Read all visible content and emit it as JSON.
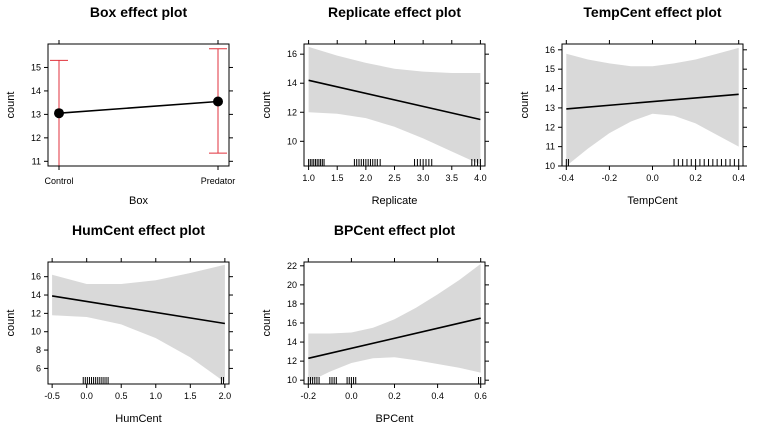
{
  "chart_data": [
    {
      "type": "line",
      "variant": "categorical-points-with-error-bars",
      "title": "Box effect plot",
      "xlabel": "Box",
      "ylabel": "count",
      "categories": [
        "Control",
        "Predator"
      ],
      "values": [
        13.05,
        13.55
      ],
      "lower": [
        10.8,
        11.35
      ],
      "upper": [
        15.3,
        15.8
      ],
      "ylim": [
        10.8,
        16.0
      ],
      "yticks": [
        11,
        12,
        13,
        14,
        15
      ],
      "colors": {
        "line": "#000000",
        "errorbar": "#e0323c",
        "point": "#000000"
      }
    },
    {
      "type": "line",
      "variant": "effect-with-confidence-band",
      "title": "Replicate effect plot",
      "xlabel": "Replicate",
      "ylabel": "count",
      "x": [
        1.0,
        4.0
      ],
      "values": [
        14.2,
        11.5
      ],
      "band_x": [
        1.0,
        1.5,
        2.0,
        2.5,
        3.0,
        3.5,
        4.0
      ],
      "band_lower": [
        12.0,
        11.9,
        11.6,
        11.0,
        10.2,
        9.3,
        8.4
      ],
      "band_upper": [
        16.5,
        15.9,
        15.4,
        15.0,
        14.8,
        14.7,
        14.7
      ],
      "xlim": [
        0.92,
        4.08
      ],
      "ylim": [
        8.3,
        16.7
      ],
      "xticks": [
        "1.0",
        "1.5",
        "2.0",
        "2.5",
        "3.0",
        "3.5",
        "4.0"
      ],
      "yticks": [
        10,
        12,
        14,
        16
      ],
      "rug": [
        1.0,
        1.03,
        1.06,
        1.09,
        1.12,
        1.15,
        1.18,
        1.21,
        1.24,
        1.27,
        1.8,
        1.84,
        1.88,
        1.92,
        1.96,
        2.0,
        2.04,
        2.08,
        2.12,
        2.16,
        2.2,
        2.25,
        2.85,
        2.9,
        2.95,
        3.0,
        3.05,
        3.1,
        3.15,
        3.85,
        3.9,
        3.95,
        4.0
      ],
      "colors": {
        "line": "#000000",
        "band": "#d9d9d9"
      }
    },
    {
      "type": "line",
      "variant": "effect-with-confidence-band",
      "title": "TempCent effect plot",
      "xlabel": "TempCent",
      "ylabel": "count",
      "x": [
        -0.4,
        0.4
      ],
      "values": [
        12.95,
        13.7
      ],
      "band_x": [
        -0.4,
        -0.3,
        -0.2,
        -0.1,
        0.0,
        0.1,
        0.2,
        0.3,
        0.4
      ],
      "band_lower": [
        10.0,
        10.9,
        11.7,
        12.3,
        12.7,
        12.6,
        12.2,
        11.6,
        11.0
      ],
      "band_upper": [
        15.8,
        15.5,
        15.3,
        15.15,
        15.15,
        15.3,
        15.5,
        15.8,
        16.1
      ],
      "xlim": [
        -0.42,
        0.42
      ],
      "ylim": [
        10.0,
        16.3
      ],
      "xticks": [
        "-0.4",
        "-0.2",
        "0.0",
        "0.2",
        "0.4"
      ],
      "yticks": [
        10,
        11,
        12,
        13,
        14,
        15,
        16
      ],
      "rug": [
        -0.4,
        -0.39,
        0.1,
        0.12,
        0.14,
        0.16,
        0.18,
        0.2,
        0.22,
        0.24,
        0.26,
        0.28,
        0.3,
        0.32,
        0.34,
        0.36,
        0.38,
        0.4
      ],
      "colors": {
        "line": "#000000",
        "band": "#d9d9d9"
      }
    },
    {
      "type": "line",
      "variant": "effect-with-confidence-band",
      "title": "HumCent effect plot",
      "xlabel": "HumCent",
      "ylabel": "count",
      "x": [
        -0.5,
        2.0
      ],
      "values": [
        13.9,
        10.9
      ],
      "band_x": [
        -0.5,
        0.0,
        0.5,
        1.0,
        1.5,
        2.0
      ],
      "band_lower": [
        11.8,
        11.6,
        10.8,
        9.3,
        7.2,
        4.5
      ],
      "band_upper": [
        16.2,
        15.2,
        15.2,
        15.6,
        16.4,
        17.3
      ],
      "xlim": [
        -0.56,
        2.06
      ],
      "ylim": [
        4.3,
        17.6
      ],
      "xticks": [
        "-0.5",
        "0.0",
        "0.5",
        "1.0",
        "1.5",
        "2.0"
      ],
      "yticks": [
        6,
        8,
        10,
        12,
        14,
        16
      ],
      "rug": [
        -0.05,
        -0.02,
        0.01,
        0.04,
        0.07,
        0.1,
        0.13,
        0.16,
        0.19,
        0.22,
        0.25,
        0.28,
        0.31,
        1.95,
        1.98
      ],
      "colors": {
        "line": "#000000",
        "band": "#d9d9d9"
      }
    },
    {
      "type": "line",
      "variant": "effect-with-confidence-band",
      "title": "BPCent effect plot",
      "xlabel": "BPCent",
      "ylabel": "count",
      "x": [
        -0.2,
        0.6
      ],
      "values": [
        12.3,
        16.5
      ],
      "band_x": [
        -0.2,
        -0.1,
        0.0,
        0.1,
        0.2,
        0.3,
        0.4,
        0.5,
        0.6
      ],
      "band_lower": [
        9.8,
        10.9,
        11.8,
        12.3,
        12.4,
        12.1,
        11.7,
        11.3,
        10.8
      ],
      "band_upper": [
        14.9,
        14.9,
        15.0,
        15.5,
        16.4,
        17.6,
        19.0,
        20.5,
        22.2
      ],
      "xlim": [
        -0.22,
        0.62
      ],
      "ylim": [
        9.6,
        22.4
      ],
      "xticks": [
        "-0.2",
        "0.0",
        "0.2",
        "0.4",
        "0.6"
      ],
      "yticks": [
        10,
        12,
        14,
        16,
        18,
        20,
        22
      ],
      "rug": [
        -0.2,
        -0.19,
        -0.18,
        -0.17,
        -0.16,
        -0.15,
        -0.1,
        -0.09,
        -0.08,
        -0.07,
        -0.02,
        -0.01,
        0.0,
        0.01,
        0.02,
        0.6,
        0.59
      ],
      "colors": {
        "line": "#000000",
        "band": "#d9d9d9"
      }
    }
  ]
}
